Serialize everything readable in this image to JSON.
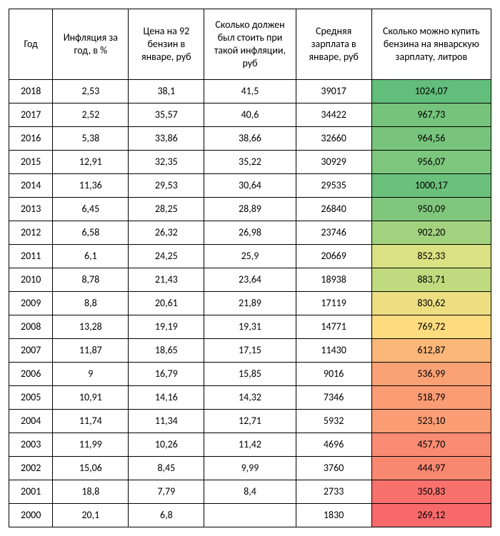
{
  "table": {
    "type": "table",
    "background_color": "#ffffff",
    "border_color": "#000000",
    "font_family": "Calibri, Arial, sans-serif",
    "header_fontsize": 14,
    "cell_fontsize": 14,
    "columns": [
      {
        "key": "year",
        "label": "Год",
        "width": 55
      },
      {
        "key": "infl",
        "label": "Инфляция за год, в %",
        "width": 95
      },
      {
        "key": "price",
        "label": "Цена на 92 бензин в январе, руб",
        "width": 95
      },
      {
        "key": "should",
        "label": "Сколько должен был стоить при такой инфляции, руб",
        "width": 115
      },
      {
        "key": "sal",
        "label": "Средняя зарплата в январе, руб",
        "width": 95
      },
      {
        "key": "liters",
        "label": "Сколько можно купить бензина на январскую зарплату, литров",
        "width": 150
      }
    ],
    "rows": [
      {
        "year": "2018",
        "infl": "2,53",
        "price": "38,1",
        "should": "41,5",
        "sal": "39017",
        "liters": "1024,07",
        "liters_bg": "#63be7b"
      },
      {
        "year": "2017",
        "infl": "2,52",
        "price": "35,57",
        "should": "40,6",
        "sal": "34422",
        "liters": "967,73",
        "liters_bg": "#76c37c"
      },
      {
        "year": "2016",
        "infl": "5,38",
        "price": "33,86",
        "should": "38,66",
        "sal": "32660",
        "liters": "964,56",
        "liters_bg": "#78c47c"
      },
      {
        "year": "2015",
        "infl": "12,91",
        "price": "32,35",
        "should": "35,22",
        "sal": "30929",
        "liters": "956,07",
        "liters_bg": "#7cc67d"
      },
      {
        "year": "2014",
        "infl": "11,36",
        "price": "29,53",
        "should": "30,64",
        "sal": "29535",
        "liters": "1000,17",
        "liters_bg": "#6bc07b"
      },
      {
        "year": "2013",
        "infl": "6,45",
        "price": "28,25",
        "should": "28,89",
        "sal": "26840",
        "liters": "950,09",
        "liters_bg": "#80c77d"
      },
      {
        "year": "2012",
        "infl": "6,58",
        "price": "26,32",
        "should": "26,98",
        "sal": "23746",
        "liters": "902,20",
        "liters_bg": "#a3d27f"
      },
      {
        "year": "2011",
        "infl": "6,1",
        "price": "24,25",
        "should": "25,9",
        "sal": "20669",
        "liters": "852,33",
        "liters_bg": "#d9e182"
      },
      {
        "year": "2010",
        "infl": "8,78",
        "price": "21,43",
        "should": "23,64",
        "sal": "18938",
        "liters": "883,71",
        "liters_bg": "#c0da80"
      },
      {
        "year": "2009",
        "infl": "8,8",
        "price": "20,61",
        "should": "21,89",
        "sal": "17119",
        "liters": "830,62",
        "liters_bg": "#ecde81"
      },
      {
        "year": "2008",
        "infl": "13,28",
        "price": "19,19",
        "should": "19,31",
        "sal": "14771",
        "liters": "769,72",
        "liters_bg": "#fddb7f"
      },
      {
        "year": "2007",
        "infl": "11,87",
        "price": "18,65",
        "should": "17,15",
        "sal": "11430",
        "liters": "612,87",
        "liters_bg": "#fbb679"
      },
      {
        "year": "2006",
        "infl": "9",
        "price": "16,79",
        "should": "15,85",
        "sal": "9016",
        "liters": "536,99",
        "liters_bg": "#faa276"
      },
      {
        "year": "2005",
        "infl": "10,91",
        "price": "14,16",
        "should": "14,32",
        "sal": "7346",
        "liters": "518,79",
        "liters_bg": "#fa9c74"
      },
      {
        "year": "2004",
        "infl": "11,74",
        "price": "11,34",
        "should": "12,71",
        "sal": "5932",
        "liters": "523,10",
        "liters_bg": "#fa9d75"
      },
      {
        "year": "2003",
        "infl": "11,99",
        "price": "10,26",
        "should": "11,42",
        "sal": "4696",
        "liters": "457,70",
        "liters_bg": "#f98c72"
      },
      {
        "year": "2002",
        "infl": "15,06",
        "price": "8,45",
        "should": "9,99",
        "sal": "3760",
        "liters": "444,97",
        "liters_bg": "#f98871"
      },
      {
        "year": "2001",
        "infl": "18,8",
        "price": "7,79",
        "should": "8,4",
        "sal": "2733",
        "liters": "350,83",
        "liters_bg": "#f8716d"
      },
      {
        "year": "2000",
        "infl": "20,1",
        "price": "6,8",
        "should": "",
        "sal": "1830",
        "liters": "269,12",
        "liters_bg": "#f8696b"
      }
    ]
  }
}
